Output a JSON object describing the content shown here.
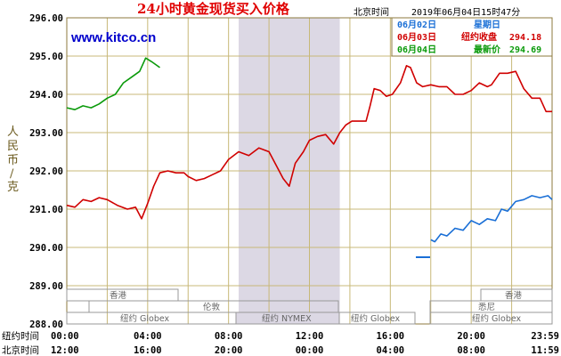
{
  "header": {
    "title": "24小时黄金现货买入价格",
    "beijing_time_label": "北京时间",
    "timestamp": "2019年06月04日15时47分"
  },
  "site_label": "www.kitco.cn",
  "y_axis_label_chars": [
    "人",
    "民",
    "币",
    "/",
    "克"
  ],
  "time_rows": {
    "ny_label": "纽约时间",
    "bj_label": "北京时间",
    "ny_ticks": [
      "00:00",
      "04:00",
      "08:00",
      "12:00",
      "16:00",
      "20:00",
      "23:59"
    ],
    "bj_ticks": [
      "12:00",
      "16:00",
      "20:00",
      "00:00",
      "04:00",
      "08:00",
      "11:59"
    ]
  },
  "legend": [
    {
      "date": "06月02日",
      "label": "星期日",
      "value": "",
      "color": "#1a6fd6"
    },
    {
      "date": "06月03日",
      "label": "纽约收盘",
      "value": "294.18",
      "color": "#d00000"
    },
    {
      "date": "06月04日",
      "label": "最新价",
      "value": "294.69",
      "color": "#0a9a0a"
    }
  ],
  "sessions": {
    "hongkong": "香港",
    "london": "伦敦",
    "nyglobex": "纽约 Globex",
    "nymex": "纽约 NYMEX",
    "sydney": "悉尼"
  },
  "colors": {
    "plot_bg": "#ffffff",
    "grid": "#c8b878",
    "shade": "#dcd8e4",
    "red_series": "#d00000",
    "green_series": "#0a9a0a",
    "blue_series": "#1a6fd6"
  },
  "chart_data": {
    "type": "line",
    "title": "24小时黄金现货买入价格",
    "ylabel": "人民币/克",
    "xlabel": "",
    "ylim": [
      288.0,
      296.0
    ],
    "y_ticks": [
      "296.00",
      "295.00",
      "294.00",
      "293.00",
      "292.00",
      "291.00",
      "290.00",
      "289.00",
      "288.00"
    ],
    "x_range_hours_ny": [
      0,
      24
    ],
    "shaded_span_ny_hours": [
      8.5,
      13.5
    ],
    "grid": true,
    "series": [
      {
        "name": "06月02日",
        "color": "#1a6fd6",
        "points": [
          [
            18.0,
            290.2
          ],
          [
            18.2,
            290.15
          ],
          [
            18.5,
            290.35
          ],
          [
            18.8,
            290.3
          ],
          [
            19.2,
            290.5
          ],
          [
            19.6,
            290.45
          ],
          [
            20.0,
            290.7
          ],
          [
            20.4,
            290.6
          ],
          [
            20.8,
            290.75
          ],
          [
            21.2,
            290.7
          ],
          [
            21.5,
            291.0
          ],
          [
            21.8,
            290.95
          ],
          [
            22.2,
            291.2
          ],
          [
            22.6,
            291.25
          ],
          [
            23.0,
            291.35
          ],
          [
            23.4,
            291.3
          ],
          [
            23.8,
            291.35
          ],
          [
            24.0,
            291.25
          ]
        ]
      },
      {
        "name": "06月03日",
        "color": "#d00000",
        "points": [
          [
            0.0,
            291.1
          ],
          [
            0.4,
            291.05
          ],
          [
            0.8,
            291.25
          ],
          [
            1.2,
            291.2
          ],
          [
            1.6,
            291.3
          ],
          [
            2.0,
            291.25
          ],
          [
            2.5,
            291.1
          ],
          [
            3.0,
            291.0
          ],
          [
            3.4,
            291.05
          ],
          [
            3.7,
            290.75
          ],
          [
            4.0,
            291.15
          ],
          [
            4.3,
            291.6
          ],
          [
            4.6,
            291.95
          ],
          [
            5.0,
            292.0
          ],
          [
            5.4,
            291.95
          ],
          [
            5.8,
            291.95
          ],
          [
            6.0,
            291.85
          ],
          [
            6.4,
            291.75
          ],
          [
            6.8,
            291.8
          ],
          [
            7.2,
            291.9
          ],
          [
            7.6,
            292.0
          ],
          [
            8.0,
            292.3
          ],
          [
            8.5,
            292.5
          ],
          [
            9.0,
            292.4
          ],
          [
            9.5,
            292.6
          ],
          [
            10.0,
            292.5
          ],
          [
            10.3,
            292.2
          ],
          [
            10.7,
            291.8
          ],
          [
            11.0,
            291.6
          ],
          [
            11.3,
            292.2
          ],
          [
            11.7,
            292.5
          ],
          [
            12.0,
            292.8
          ],
          [
            12.4,
            292.9
          ],
          [
            12.8,
            292.95
          ],
          [
            13.2,
            292.7
          ],
          [
            13.5,
            293.0
          ],
          [
            13.8,
            293.2
          ],
          [
            14.1,
            293.3
          ],
          [
            14.5,
            293.3
          ],
          [
            14.8,
            293.3
          ],
          [
            15.0,
            293.7
          ],
          [
            15.2,
            294.15
          ],
          [
            15.5,
            294.1
          ],
          [
            15.8,
            293.95
          ],
          [
            16.1,
            294.0
          ],
          [
            16.5,
            294.3
          ],
          [
            16.8,
            294.75
          ],
          [
            17.0,
            294.7
          ],
          [
            17.3,
            294.3
          ],
          [
            17.6,
            294.2
          ],
          [
            18.0,
            294.25
          ],
          [
            18.4,
            294.2
          ],
          [
            18.8,
            294.2
          ],
          [
            19.2,
            294.0
          ],
          [
            19.6,
            294.0
          ],
          [
            20.0,
            294.1
          ],
          [
            20.4,
            294.3
          ],
          [
            20.8,
            294.2
          ],
          [
            21.0,
            294.25
          ],
          [
            21.4,
            294.55
          ],
          [
            21.8,
            294.55
          ],
          [
            22.2,
            294.6
          ],
          [
            22.6,
            294.15
          ],
          [
            23.0,
            293.9
          ],
          [
            23.4,
            293.9
          ],
          [
            23.7,
            293.55
          ],
          [
            24.0,
            293.55
          ]
        ]
      },
      {
        "name": "06月04日",
        "color": "#0a9a0a",
        "points": [
          [
            0.0,
            293.65
          ],
          [
            0.4,
            293.6
          ],
          [
            0.8,
            293.7
          ],
          [
            1.2,
            293.65
          ],
          [
            1.6,
            293.75
          ],
          [
            2.0,
            293.9
          ],
          [
            2.4,
            294.0
          ],
          [
            2.8,
            294.3
          ],
          [
            3.2,
            294.45
          ],
          [
            3.6,
            294.6
          ],
          [
            3.9,
            294.95
          ],
          [
            4.2,
            294.85
          ],
          [
            4.6,
            294.7
          ]
        ]
      }
    ]
  }
}
